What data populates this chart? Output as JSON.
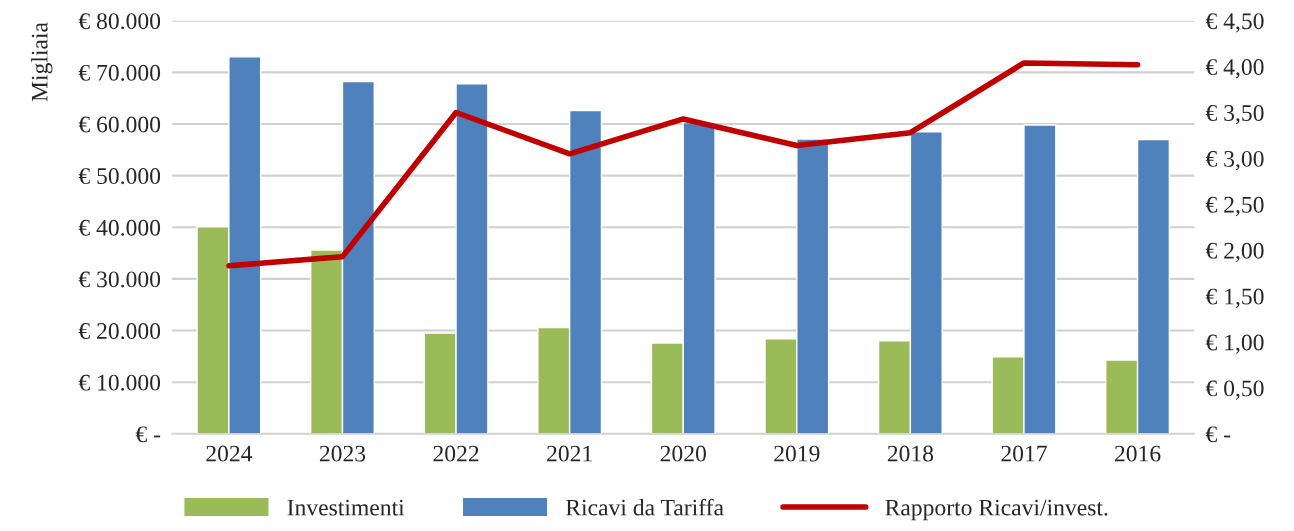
{
  "chart_data": {
    "type": "bar",
    "ylabel": "Migliaia",
    "categories": [
      "2024",
      "2023",
      "2022",
      "2021",
      "2020",
      "2019",
      "2018",
      "2017",
      "2016"
    ],
    "series": [
      {
        "name": "Investimenti",
        "color": "#9bbb59",
        "values": [
          40100,
          35600,
          19500,
          20600,
          17600,
          18400,
          18000,
          14900,
          14300
        ]
      },
      {
        "name": "Ricavi da Tariffa",
        "color": "#4f81bd",
        "values": [
          73000,
          68200,
          67800,
          62600,
          60300,
          57100,
          58500,
          59800,
          57000
        ]
      },
      {
        "name": "Rapporto Ricavi/invest.",
        "type": "line",
        "axis": "y2",
        "color": "#c00000",
        "values": [
          1.83,
          1.93,
          3.5,
          3.05,
          3.43,
          3.14,
          3.28,
          4.04,
          4.02
        ]
      }
    ],
    "ylim": [
      0,
      80000
    ],
    "yticks": [
      {
        "value": 0,
        "label": "€ -"
      },
      {
        "value": 10000,
        "label": "€ 10.000"
      },
      {
        "value": 20000,
        "label": "€ 20.000"
      },
      {
        "value": 30000,
        "label": "€ 30.000"
      },
      {
        "value": 40000,
        "label": "€ 40.000"
      },
      {
        "value": 50000,
        "label": "€ 50.000"
      },
      {
        "value": 60000,
        "label": "€ 60.000"
      },
      {
        "value": 70000,
        "label": "€ 70.000"
      },
      {
        "value": 80000,
        "label": "€ 80.000"
      }
    ],
    "y2lim": [
      0,
      4.5
    ],
    "y2ticks": [
      {
        "value": 0,
        "label": "€ -"
      },
      {
        "value": 0.5,
        "label": "€ 0,50"
      },
      {
        "value": 1,
        "label": "€ 1,00"
      },
      {
        "value": 1.5,
        "label": "€ 1,50"
      },
      {
        "value": 2,
        "label": "€ 2,00"
      },
      {
        "value": 2.5,
        "label": "€ 2,50"
      },
      {
        "value": 3,
        "label": "€ 3,00"
      },
      {
        "value": 3.5,
        "label": "€ 3,50"
      },
      {
        "value": 4,
        "label": "€ 4,00"
      },
      {
        "value": 4.5,
        "label": "€ 4,50"
      }
    ],
    "grid": "y",
    "legend": "bottom"
  }
}
